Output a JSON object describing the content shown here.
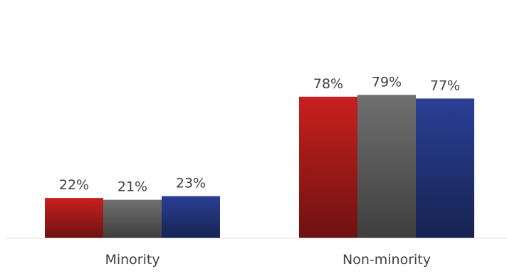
{
  "chart_data": {
    "type": "bar",
    "categories": [
      "Minority",
      "Non-minority"
    ],
    "series": [
      {
        "values": [
          22,
          78
        ],
        "color": "#c8201e"
      },
      {
        "values": [
          21,
          79
        ],
        "color": "#707070"
      },
      {
        "values": [
          23,
          77
        ],
        "color": "#2a3f95"
      }
    ],
    "data_labels": [
      [
        "22%",
        "78%"
      ],
      [
        "21%",
        "79%"
      ],
      [
        "23%",
        "77%"
      ]
    ],
    "ylim": [
      0,
      100
    ],
    "grid": false,
    "legend": "none",
    "axis_color": "#d9d9d9"
  }
}
